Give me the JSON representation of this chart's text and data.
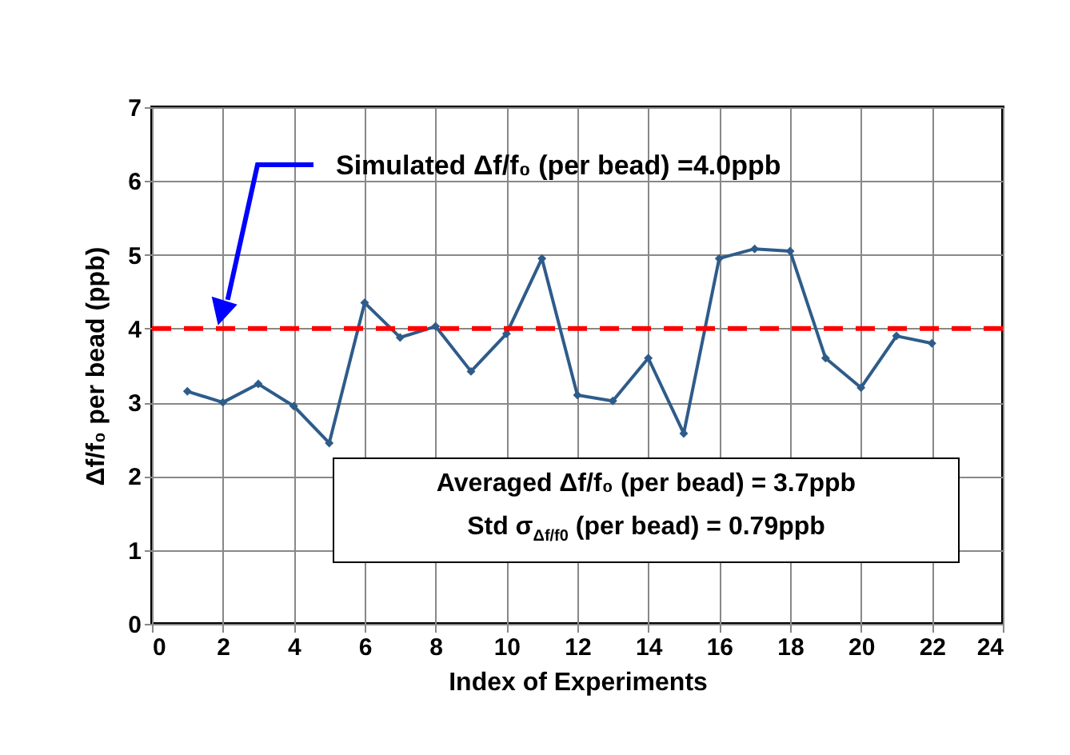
{
  "chart_data": {
    "type": "line",
    "xlabel": "Index of Experiments",
    "ylabel": "Δf/f₀ per bead (ppb)",
    "x": [
      1,
      2,
      3,
      4,
      5,
      6,
      7,
      8,
      9,
      10,
      11,
      12,
      13,
      14,
      15,
      16,
      17,
      18,
      19,
      20,
      21,
      22
    ],
    "series": [
      {
        "color": "#2e5c8a",
        "values": [
          3.15,
          3.0,
          3.25,
          2.95,
          2.45,
          4.35,
          3.88,
          4.03,
          3.42,
          3.93,
          4.95,
          3.1,
          3.02,
          3.6,
          2.58,
          4.95,
          5.08,
          5.05,
          3.6,
          3.2,
          3.9,
          3.8
        ]
      }
    ],
    "xlim": [
      0,
      24
    ],
    "xticks": [
      0,
      2,
      4,
      6,
      8,
      10,
      12,
      14,
      16,
      18,
      20,
      22,
      24
    ],
    "ylim": [
      0,
      7
    ],
    "yticks": [
      0,
      1,
      2,
      3,
      4,
      5,
      6,
      7
    ],
    "grid": true,
    "marker": "diamond",
    "line_style": "solid",
    "ref_lines": [
      {
        "axis": "y",
        "value": 4,
        "color": "#ff0000",
        "line_style": "dashed"
      }
    ],
    "annotations": [
      "Simulated Δf/f₀ (per bead) =4.0ppb",
      "Averaged Δf/f₀ (per bead) = 3.7ppb",
      "Std σ$_{Δf/f0}$ (per bead) = 0.79ppb"
    ]
  }
}
